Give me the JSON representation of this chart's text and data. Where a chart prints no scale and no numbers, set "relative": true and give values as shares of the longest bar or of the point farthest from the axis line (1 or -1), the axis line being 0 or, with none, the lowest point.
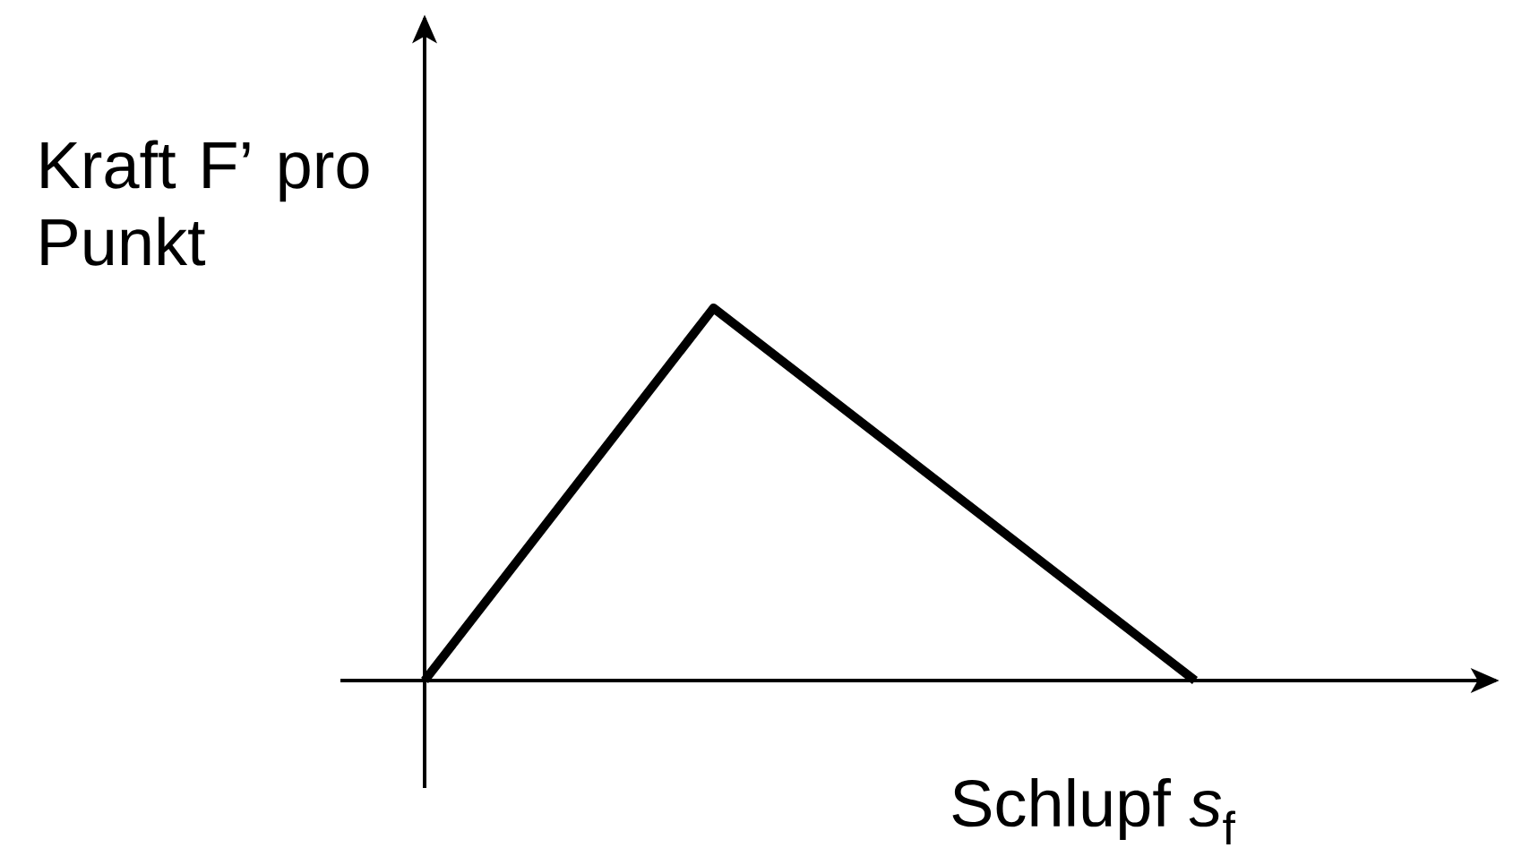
{
  "chart_data": {
    "type": "line",
    "relative": true,
    "ylabel": "Kraft F’ pro Punkt",
    "xlabel": "Schlupf *s*$_{f}$",
    "categories": [
      null,
      null,
      null,
      null,
      null,
      null,
      null,
      null,
      null
    ],
    "values": [
      0,
      null,
      null,
      1,
      null,
      null,
      null,
      null,
      0
    ],
    "color": "#000000"
  }
}
